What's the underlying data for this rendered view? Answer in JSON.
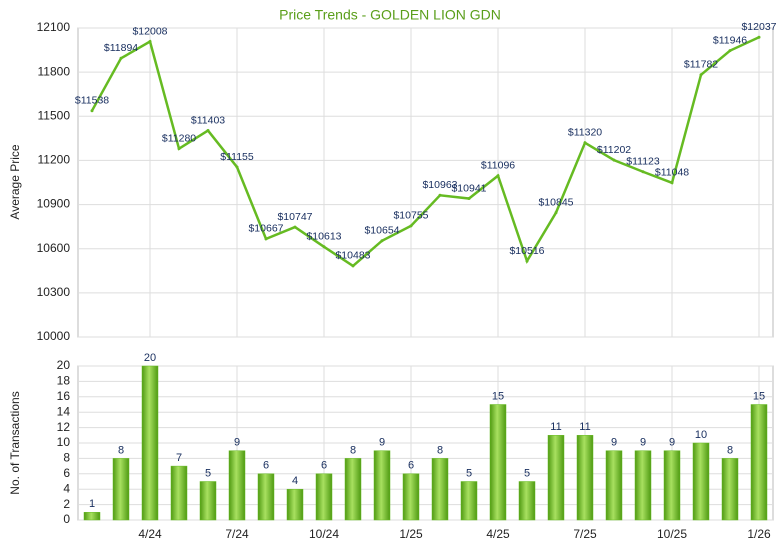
{
  "chart_data": [
    {
      "type": "line",
      "title": "Price Trends - GOLDEN LION GDN",
      "y_label": "Average Price",
      "series": [
        {
          "color": "#66bb22",
          "values": [
            11538,
            11894,
            12008,
            11280,
            11403,
            11155,
            10667,
            10747,
            10613,
            10483,
            10654,
            10755,
            10963,
            10941,
            11096,
            10516,
            10845,
            11320,
            11202,
            11123,
            11048,
            11782,
            11946,
            12037
          ],
          "value_labels": [
            "$11538",
            "$11894",
            "$12008",
            "$11280",
            "$11403",
            "$11155",
            "$10667",
            "$10747",
            "$10613",
            "$10483",
            "$10654",
            "$10755",
            "$10963",
            "$10941",
            "$11096",
            "$10516",
            "$10845",
            "$11320",
            "$11202",
            "$11123",
            "$11048",
            "$11782",
            "$11946",
            "$12037"
          ]
        }
      ],
      "ylim": [
        10000,
        12100
      ],
      "yticks": [
        10000,
        10300,
        10600,
        10900,
        11200,
        11500,
        11800,
        12100
      ],
      "grid": true
    },
    {
      "type": "bar",
      "y_label": "No. of Transactions",
      "categories": [
        null,
        null,
        "4/24",
        null,
        null,
        "7/24",
        null,
        null,
        "10/24",
        null,
        null,
        "1/25",
        null,
        null,
        "4/25",
        null,
        null,
        "7/25",
        null,
        null,
        "10/25",
        null,
        null,
        "1/26"
      ],
      "values": [
        1,
        8,
        20,
        7,
        5,
        9,
        6,
        4,
        6,
        8,
        9,
        6,
        8,
        5,
        15,
        5,
        11,
        11,
        9,
        9,
        9,
        10,
        8,
        15
      ],
      "color": "#66bb22",
      "ylim": [
        0,
        20
      ],
      "yticks": [
        0,
        2,
        4,
        6,
        8,
        10,
        12,
        14,
        16,
        18,
        20
      ],
      "grid": true
    }
  ]
}
